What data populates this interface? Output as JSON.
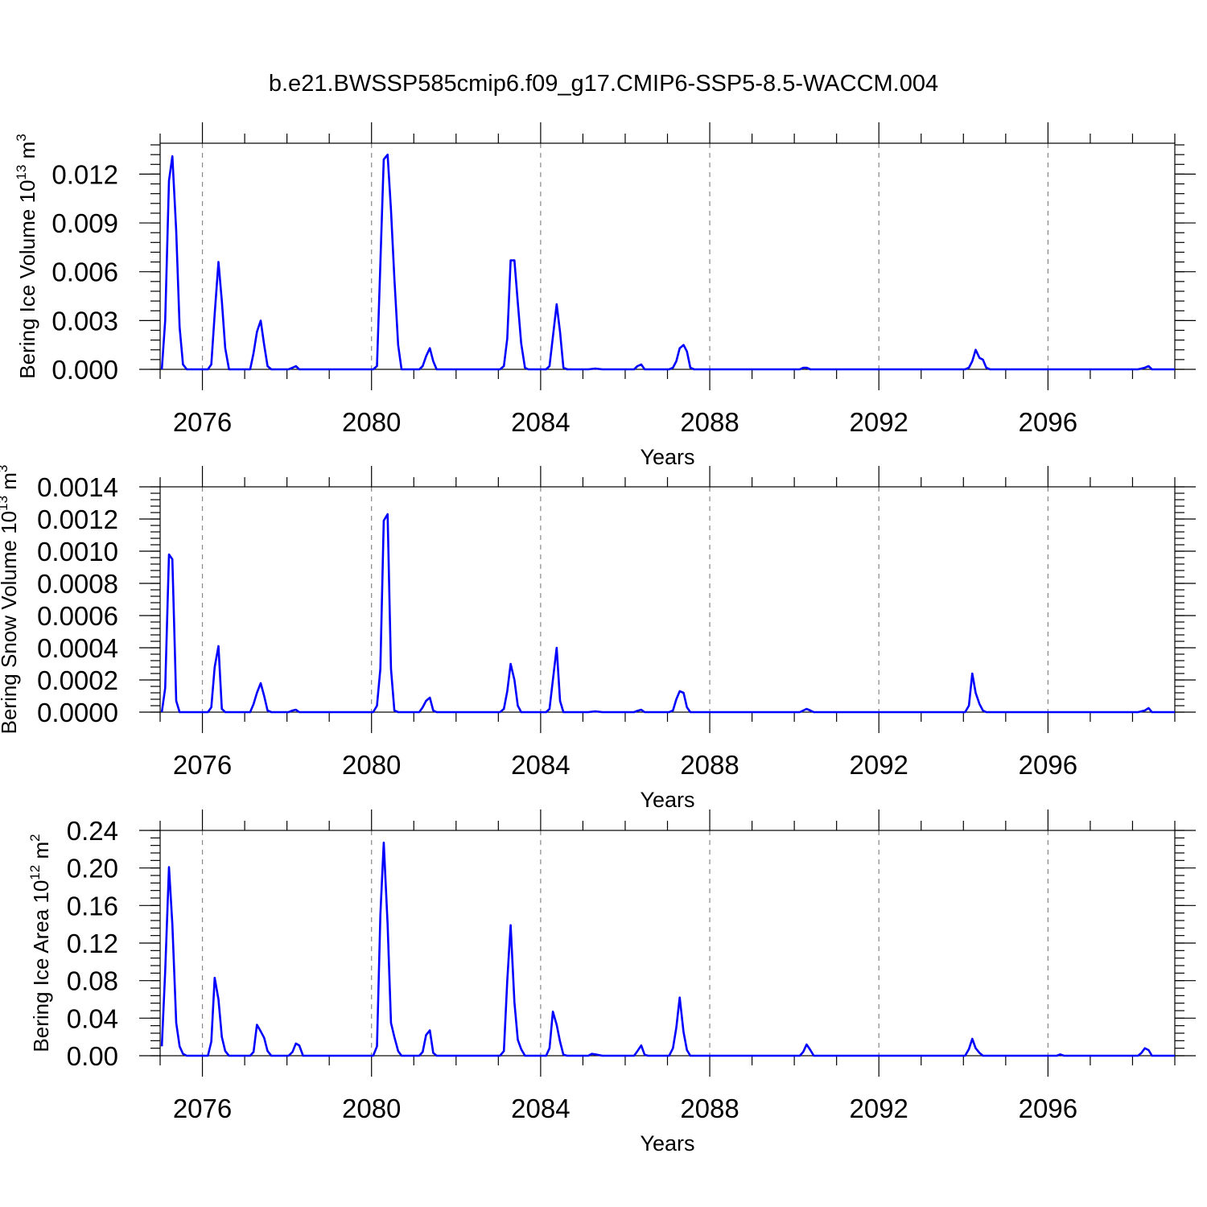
{
  "figure": {
    "title": "b.e21.BWSSP585cmip6.f09_g17.CMIP6-SSP5-8.5-WACCM.004"
  },
  "chart_data": [
    {
      "type": "line",
      "title": "b.e21.BWSSP585cmip6.f09_g17.CMIP6-SSP5-8.5-WACCM.004",
      "xlabel": "Years",
      "ylabel": "Bering Ice Volume 10",
      "ylabel_exp": "13",
      "ylabel_unit": " m",
      "ylabel_unit_exp": "3",
      "xlim": [
        2075,
        2099
      ],
      "ylim": [
        0,
        0.0139
      ],
      "xticks": [
        2076,
        2080,
        2084,
        2088,
        2092,
        2096
      ],
      "yticks": [
        "0.000",
        "0.003",
        "0.006",
        "0.009",
        "0.012"
      ],
      "ytick_values": [
        0,
        0.003,
        0.006,
        0.009,
        0.012
      ],
      "yminor_step": 0.0006,
      "grid": "vertical dashed",
      "color": "#0000ff",
      "points": [
        [
          2075.04,
          0
        ],
        [
          2075.12,
          0.003
        ],
        [
          2075.21,
          0.0116
        ],
        [
          2075.29,
          0.0131
        ],
        [
          2075.38,
          0.0085
        ],
        [
          2075.46,
          0.0026
        ],
        [
          2075.54,
          0.0003
        ],
        [
          2075.63,
          0
        ],
        [
          2076.13,
          0
        ],
        [
          2076.21,
          0.0003
        ],
        [
          2076.29,
          0.0034
        ],
        [
          2076.38,
          0.0066
        ],
        [
          2076.46,
          0.0042
        ],
        [
          2076.54,
          0.0013
        ],
        [
          2076.63,
          0
        ],
        [
          2077.13,
          0
        ],
        [
          2077.21,
          0.001
        ],
        [
          2077.29,
          0.0023
        ],
        [
          2077.38,
          0.003
        ],
        [
          2077.46,
          0.0015
        ],
        [
          2077.54,
          0.0002
        ],
        [
          2077.63,
          0
        ],
        [
          2078.04,
          0
        ],
        [
          2078.13,
          0.0001
        ],
        [
          2078.21,
          0.0002
        ],
        [
          2078.29,
          0
        ],
        [
          2080.04,
          0
        ],
        [
          2080.13,
          0.0002
        ],
        [
          2080.21,
          0.0065
        ],
        [
          2080.29,
          0.0129
        ],
        [
          2080.38,
          0.0132
        ],
        [
          2080.46,
          0.0098
        ],
        [
          2080.54,
          0.0056
        ],
        [
          2080.63,
          0.0015
        ],
        [
          2080.71,
          0
        ],
        [
          2081.13,
          0
        ],
        [
          2081.21,
          0.0002
        ],
        [
          2081.29,
          0.0008
        ],
        [
          2081.38,
          0.0013
        ],
        [
          2081.46,
          0.0005
        ],
        [
          2081.54,
          0
        ],
        [
          2083.04,
          0
        ],
        [
          2083.13,
          0.0002
        ],
        [
          2083.21,
          0.0019
        ],
        [
          2083.29,
          0.0067
        ],
        [
          2083.38,
          0.0067
        ],
        [
          2083.46,
          0.0041
        ],
        [
          2083.54,
          0.0016
        ],
        [
          2083.63,
          0.0001
        ],
        [
          2083.71,
          0
        ],
        [
          2084.13,
          0
        ],
        [
          2084.21,
          0.0002
        ],
        [
          2084.29,
          0.002
        ],
        [
          2084.38,
          0.004
        ],
        [
          2084.46,
          0.0023
        ],
        [
          2084.54,
          0.0001
        ],
        [
          2084.63,
          0
        ],
        [
          2085.13,
          0
        ],
        [
          2085.29,
          5e-05
        ],
        [
          2085.46,
          0
        ],
        [
          2086.21,
          0
        ],
        [
          2086.29,
          0.0002
        ],
        [
          2086.38,
          0.0003
        ],
        [
          2086.46,
          0
        ],
        [
          2087.04,
          0
        ],
        [
          2087.13,
          0.0001
        ],
        [
          2087.21,
          0.0005
        ],
        [
          2087.29,
          0.0013
        ],
        [
          2087.38,
          0.0015
        ],
        [
          2087.46,
          0.0011
        ],
        [
          2087.54,
          0.0001
        ],
        [
          2087.63,
          0
        ],
        [
          2090.13,
          0
        ],
        [
          2090.21,
          0.0001
        ],
        [
          2090.29,
          0.0001
        ],
        [
          2090.38,
          0
        ],
        [
          2094.04,
          0
        ],
        [
          2094.13,
          0.0001
        ],
        [
          2094.21,
          0.0005
        ],
        [
          2094.29,
          0.0012
        ],
        [
          2094.38,
          0.0007
        ],
        [
          2094.46,
          0.0006
        ],
        [
          2094.54,
          0.0001
        ],
        [
          2094.63,
          0
        ],
        [
          2098.13,
          0
        ],
        [
          2098.29,
          0.0001
        ],
        [
          2098.38,
          0.0002
        ],
        [
          2098.46,
          0
        ],
        [
          2099.0,
          0
        ]
      ]
    },
    {
      "type": "line",
      "xlabel": "Years",
      "ylabel": "Bering Snow Volume 10",
      "ylabel_exp": "13",
      "ylabel_unit": " m",
      "ylabel_unit_exp": "3",
      "xlim": [
        2075,
        2099
      ],
      "ylim": [
        0,
        0.0014
      ],
      "xticks": [
        2076,
        2080,
        2084,
        2088,
        2092,
        2096
      ],
      "yticks": [
        "0.0000",
        "0.0002",
        "0.0004",
        "0.0006",
        "0.0008",
        "0.0010",
        "0.0012",
        "0.0014"
      ],
      "ytick_values": [
        0,
        0.0002,
        0.0004,
        0.0006,
        0.0008,
        0.001,
        0.0012,
        0.0014
      ],
      "yminor_step": 4e-05,
      "grid": "vertical dashed",
      "color": "#0000ff",
      "points": [
        [
          2075.04,
          0
        ],
        [
          2075.12,
          0.00015
        ],
        [
          2075.21,
          0.00098
        ],
        [
          2075.29,
          0.00095
        ],
        [
          2075.38,
          7e-05
        ],
        [
          2075.46,
          0
        ],
        [
          2076.13,
          0
        ],
        [
          2076.21,
          3e-05
        ],
        [
          2076.29,
          0.00028
        ],
        [
          2076.38,
          0.00041
        ],
        [
          2076.46,
          2e-05
        ],
        [
          2076.54,
          0
        ],
        [
          2077.13,
          0
        ],
        [
          2077.21,
          5e-05
        ],
        [
          2077.29,
          0.00012
        ],
        [
          2077.38,
          0.00018
        ],
        [
          2077.46,
          0.0001
        ],
        [
          2077.54,
          1e-05
        ],
        [
          2077.63,
          0
        ],
        [
          2078.04,
          0
        ],
        [
          2078.13,
          1e-05
        ],
        [
          2078.21,
          1.5e-05
        ],
        [
          2078.29,
          0
        ],
        [
          2080.04,
          0
        ],
        [
          2080.13,
          4e-05
        ],
        [
          2080.21,
          0.00027
        ],
        [
          2080.29,
          0.00119
        ],
        [
          2080.38,
          0.00123
        ],
        [
          2080.46,
          0.00027
        ],
        [
          2080.54,
          1e-05
        ],
        [
          2080.63,
          0
        ],
        [
          2081.13,
          0
        ],
        [
          2081.21,
          3e-05
        ],
        [
          2081.29,
          7e-05
        ],
        [
          2081.38,
          9e-05
        ],
        [
          2081.46,
          1e-05
        ],
        [
          2081.54,
          0
        ],
        [
          2083.04,
          0
        ],
        [
          2083.13,
          2e-05
        ],
        [
          2083.21,
          0.00013
        ],
        [
          2083.29,
          0.0003
        ],
        [
          2083.38,
          0.0002
        ],
        [
          2083.46,
          4e-05
        ],
        [
          2083.54,
          0
        ],
        [
          2084.13,
          0
        ],
        [
          2084.21,
          2e-05
        ],
        [
          2084.29,
          0.0002
        ],
        [
          2084.38,
          0.0004
        ],
        [
          2084.46,
          7e-05
        ],
        [
          2084.54,
          0
        ],
        [
          2085.13,
          0
        ],
        [
          2085.29,
          5e-06
        ],
        [
          2085.46,
          0
        ],
        [
          2086.21,
          0
        ],
        [
          2086.29,
          8e-06
        ],
        [
          2086.38,
          1.5e-05
        ],
        [
          2086.46,
          0
        ],
        [
          2087.04,
          0
        ],
        [
          2087.13,
          1e-05
        ],
        [
          2087.21,
          8e-05
        ],
        [
          2087.29,
          0.00013
        ],
        [
          2087.38,
          0.00012
        ],
        [
          2087.46,
          3e-05
        ],
        [
          2087.54,
          0
        ],
        [
          2090.13,
          0
        ],
        [
          2090.21,
          1e-05
        ],
        [
          2090.29,
          2e-05
        ],
        [
          2090.38,
          1e-05
        ],
        [
          2090.46,
          0
        ],
        [
          2094.04,
          0
        ],
        [
          2094.13,
          4e-05
        ],
        [
          2094.21,
          0.00024
        ],
        [
          2094.29,
          0.00012
        ],
        [
          2094.38,
          5e-05
        ],
        [
          2094.46,
          1e-05
        ],
        [
          2094.54,
          0
        ],
        [
          2098.13,
          0
        ],
        [
          2098.29,
          1e-05
        ],
        [
          2098.38,
          2.5e-05
        ],
        [
          2098.46,
          0
        ],
        [
          2099.0,
          0
        ]
      ]
    },
    {
      "type": "line",
      "xlabel": "Years",
      "ylabel": "Bering Ice Area 10",
      "ylabel_exp": "12",
      "ylabel_unit": " m",
      "ylabel_unit_exp": "2",
      "xlim": [
        2075,
        2099
      ],
      "ylim": [
        0,
        0.24
      ],
      "xticks": [
        2076,
        2080,
        2084,
        2088,
        2092,
        2096
      ],
      "yticks": [
        "0.00",
        "0.04",
        "0.08",
        "0.12",
        "0.16",
        "0.20",
        "0.24"
      ],
      "ytick_values": [
        0,
        0.04,
        0.08,
        0.12,
        0.16,
        0.2,
        0.24
      ],
      "yminor_step": 0.008,
      "grid": "vertical dashed",
      "color": "#0000ff",
      "points": [
        [
          2075.04,
          0.01
        ],
        [
          2075.12,
          0.09
        ],
        [
          2075.21,
          0.201
        ],
        [
          2075.29,
          0.14
        ],
        [
          2075.38,
          0.035
        ],
        [
          2075.46,
          0.01
        ],
        [
          2075.54,
          0.002
        ],
        [
          2075.63,
          0
        ],
        [
          2076.13,
          0
        ],
        [
          2076.21,
          0.015
        ],
        [
          2076.29,
          0.083
        ],
        [
          2076.38,
          0.06
        ],
        [
          2076.46,
          0.02
        ],
        [
          2076.54,
          0.005
        ],
        [
          2076.63,
          0
        ],
        [
          2077.13,
          0
        ],
        [
          2077.21,
          0.004
        ],
        [
          2077.29,
          0.033
        ],
        [
          2077.38,
          0.026
        ],
        [
          2077.46,
          0.019
        ],
        [
          2077.54,
          0.005
        ],
        [
          2077.63,
          0
        ],
        [
          2078.04,
          0
        ],
        [
          2078.13,
          0.004
        ],
        [
          2078.21,
          0.013
        ],
        [
          2078.29,
          0.011
        ],
        [
          2078.38,
          0
        ],
        [
          2080.04,
          0
        ],
        [
          2080.13,
          0.01
        ],
        [
          2080.21,
          0.15
        ],
        [
          2080.29,
          0.227
        ],
        [
          2080.38,
          0.14
        ],
        [
          2080.46,
          0.035
        ],
        [
          2080.54,
          0.02
        ],
        [
          2080.63,
          0.005
        ],
        [
          2080.71,
          0
        ],
        [
          2081.13,
          0
        ],
        [
          2081.21,
          0.004
        ],
        [
          2081.29,
          0.022
        ],
        [
          2081.38,
          0.027
        ],
        [
          2081.46,
          0.003
        ],
        [
          2081.54,
          0
        ],
        [
          2083.04,
          0
        ],
        [
          2083.13,
          0.005
        ],
        [
          2083.21,
          0.08
        ],
        [
          2083.29,
          0.139
        ],
        [
          2083.38,
          0.057
        ],
        [
          2083.46,
          0.017
        ],
        [
          2083.54,
          0.007
        ],
        [
          2083.63,
          0
        ],
        [
          2084.13,
          0
        ],
        [
          2084.21,
          0.008
        ],
        [
          2084.29,
          0.047
        ],
        [
          2084.38,
          0.033
        ],
        [
          2084.46,
          0.015
        ],
        [
          2084.54,
          0.001
        ],
        [
          2084.63,
          0
        ],
        [
          2085.13,
          0
        ],
        [
          2085.21,
          0.002
        ],
        [
          2085.29,
          0.0015
        ],
        [
          2085.46,
          0
        ],
        [
          2086.21,
          0
        ],
        [
          2086.29,
          0.005
        ],
        [
          2086.38,
          0.011
        ],
        [
          2086.46,
          0.001
        ],
        [
          2086.54,
          0
        ],
        [
          2087.04,
          0
        ],
        [
          2087.13,
          0.008
        ],
        [
          2087.21,
          0.03
        ],
        [
          2087.29,
          0.062
        ],
        [
          2087.38,
          0.025
        ],
        [
          2087.46,
          0.006
        ],
        [
          2087.54,
          0
        ],
        [
          2090.13,
          0
        ],
        [
          2090.21,
          0.004
        ],
        [
          2090.29,
          0.012
        ],
        [
          2090.38,
          0.006
        ],
        [
          2090.46,
          0
        ],
        [
          2094.04,
          0
        ],
        [
          2094.13,
          0.007
        ],
        [
          2094.21,
          0.018
        ],
        [
          2094.29,
          0.008
        ],
        [
          2094.38,
          0.003
        ],
        [
          2094.46,
          0
        ],
        [
          2096.21,
          0
        ],
        [
          2096.29,
          0.0015
        ],
        [
          2096.38,
          0
        ],
        [
          2098.13,
          0
        ],
        [
          2098.21,
          0.003
        ],
        [
          2098.29,
          0.008
        ],
        [
          2098.38,
          0.006
        ],
        [
          2098.46,
          0
        ],
        [
          2099.0,
          0
        ]
      ]
    }
  ]
}
